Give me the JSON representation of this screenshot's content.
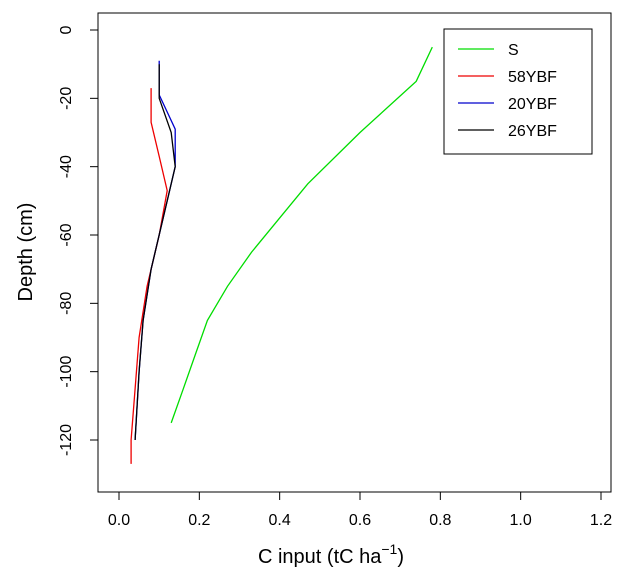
{
  "chart_data": {
    "type": "line",
    "xlabel": "C input (tC ha",
    "xlabel_sup": "−1",
    "xlabel_close": ")",
    "ylabel": "Depth (cm)",
    "xlim": [
      0.0,
      1.2
    ],
    "ylim": [
      -127,
      0
    ],
    "x_ticks": [
      0.0,
      0.2,
      0.4,
      0.6,
      0.8,
      1.0,
      1.2
    ],
    "x_tick_labels": [
      "0.0",
      "0.2",
      "0.4",
      "0.6",
      "0.8",
      "1.0",
      "1.2"
    ],
    "y_ticks": [
      0,
      -20,
      -40,
      -60,
      -80,
      -100,
      -120
    ],
    "y_tick_labels": [
      "0",
      "-20",
      "-40",
      "-60",
      "-80",
      "-100",
      "-120"
    ],
    "grid": false,
    "legend_position": "top-right",
    "series": [
      {
        "name": "S",
        "color": "#00dd00",
        "points": [
          [
            0.78,
            -5
          ],
          [
            0.74,
            -15
          ],
          [
            0.6,
            -30
          ],
          [
            0.47,
            -45
          ],
          [
            0.4,
            -55
          ],
          [
            0.33,
            -65
          ],
          [
            0.27,
            -75
          ],
          [
            0.22,
            -85
          ],
          [
            0.19,
            -95
          ],
          [
            0.16,
            -105
          ],
          [
            0.13,
            -115
          ]
        ]
      },
      {
        "name": "58YBF",
        "color": "#ee0000",
        "points": [
          [
            0.08,
            -17
          ],
          [
            0.08,
            -27
          ],
          [
            0.1,
            -37
          ],
          [
            0.12,
            -47
          ],
          [
            0.1,
            -60
          ],
          [
            0.07,
            -75
          ],
          [
            0.05,
            -90
          ],
          [
            0.04,
            -105
          ],
          [
            0.03,
            -120
          ],
          [
            0.03,
            -127
          ]
        ]
      },
      {
        "name": "20YBF",
        "color": "#0000cc",
        "points": [
          [
            0.1,
            -9
          ],
          [
            0.1,
            -19
          ],
          [
            0.14,
            -29
          ],
          [
            0.14,
            -40
          ],
          [
            0.11,
            -55
          ],
          [
            0.08,
            -70
          ],
          [
            0.06,
            -85
          ],
          [
            0.05,
            -100
          ],
          [
            0.04,
            -120
          ]
        ]
      },
      {
        "name": "26YBF",
        "color": "#000000",
        "points": [
          [
            0.1,
            -10
          ],
          [
            0.1,
            -20
          ],
          [
            0.13,
            -30
          ],
          [
            0.14,
            -40
          ],
          [
            0.11,
            -55
          ],
          [
            0.08,
            -70
          ],
          [
            0.06,
            -85
          ],
          [
            0.05,
            -100
          ],
          [
            0.04,
            -120
          ]
        ]
      }
    ]
  }
}
